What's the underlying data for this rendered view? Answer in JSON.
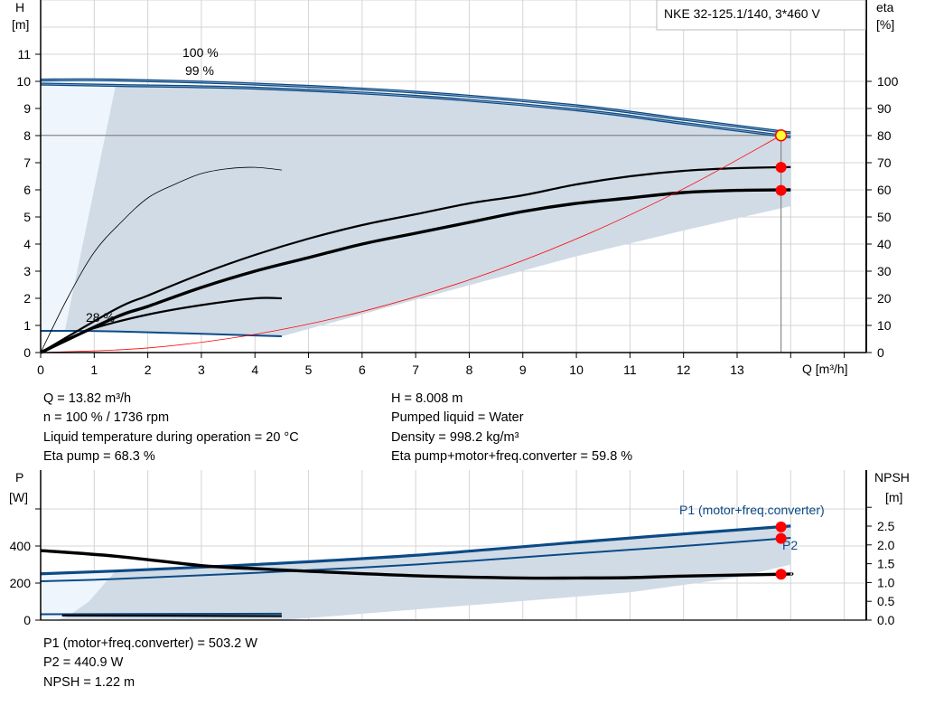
{
  "title_box": "NKE 32-125.1/140, 3*460 V",
  "colors": {
    "curve_blue": "#0b4a86",
    "area_dark": "#d0dbe6",
    "area_light": "#eef5fc",
    "system_red": "#ff0000",
    "point_red": "#ff0000",
    "point_yellow": "#ffff33",
    "grid": "#d4d4d4"
  },
  "info_top": {
    "left": [
      "Q = 13.82 m³/h",
      "n = 100 % / 1736 rpm",
      "Liquid temperature during operation = 20 °C",
      "Eta pump = 68.3 %"
    ],
    "right": [
      "H = 8.008 m",
      "Pumped liquid = Water",
      "Density = 998.2 kg/m³",
      "Eta pump+motor+freq.converter = 59.8 %"
    ]
  },
  "info_bottom": [
    "P1 (motor+freq.converter) = 503.2 W",
    "P2 = 440.9 W",
    "NPSH = 1.22 m"
  ],
  "chart_data": [
    {
      "type": "line",
      "title": "NKE 32-125.1/140, 3*460 V",
      "xlabel": "Q [m³/h]",
      "ylabel": [
        "H",
        "[m]"
      ],
      "y2label": [
        "eta",
        "[%]"
      ],
      "xlim": [
        0,
        15.4
      ],
      "ylim": [
        0,
        13
      ],
      "y2lim": [
        0,
        130
      ],
      "x_ticks": [
        "0",
        "1",
        "2",
        "3",
        "4",
        "5",
        "6",
        "7",
        "8",
        "9",
        "10",
        "11",
        "12",
        "13"
      ],
      "y_ticks": [
        "0",
        "1",
        "2",
        "3",
        "4",
        "5",
        "6",
        "7",
        "8",
        "9",
        "10",
        "11"
      ],
      "y2_ticks": [
        "0",
        "10",
        "20",
        "30",
        "40",
        "50",
        "60",
        "70",
        "80",
        "90",
        "100"
      ],
      "grid": true,
      "annotations": [
        {
          "text": "100 %",
          "x": 3.0,
          "y": 10.3
        },
        {
          "text": "99 %",
          "x": 3.0,
          "y": 10.1
        },
        {
          "text": "28 %",
          "x": 1.15,
          "y": 1.15
        }
      ],
      "areas": [
        {
          "fill": "light",
          "points": [
            [
              0,
              10.05
            ],
            [
              1.4,
              10.05
            ],
            [
              1.4,
              9.85
            ],
            [
              0.45,
              0.8
            ],
            [
              0,
              0.8
            ]
          ]
        },
        {
          "fill": "dark",
          "points": [
            [
              1.4,
              9.85
            ],
            [
              4,
              9.75
            ],
            [
              7,
              9.45
            ],
            [
              10,
              8.95
            ],
            [
              12,
              8.45
            ],
            [
              14,
              7.95
            ],
            [
              14,
              5.4
            ],
            [
              12,
              4.5
            ],
            [
              10,
              3.55
            ],
            [
              7,
              1.95
            ],
            [
              4.5,
              0.6
            ],
            [
              1.4,
              0.78
            ],
            [
              0.45,
              0.8
            ]
          ]
        }
      ],
      "series": [
        {
          "axis": "H",
          "style": "blue-thick",
          "points": [
            [
              0,
              10.05
            ],
            [
              1.4,
              10.05
            ],
            [
              4,
              9.9
            ],
            [
              7,
              9.6
            ],
            [
              10,
              9.1
            ],
            [
              12,
              8.6
            ],
            [
              14,
              8.1
            ]
          ]
        },
        {
          "axis": "H",
          "style": "blue-thick",
          "points": [
            [
              0,
              9.9
            ],
            [
              1.4,
              9.85
            ],
            [
              4,
              9.75
            ],
            [
              7,
              9.45
            ],
            [
              10,
              8.95
            ],
            [
              12,
              8.45
            ],
            [
              14,
              7.95
            ]
          ]
        },
        {
          "axis": "H",
          "style": "blue",
          "points": [
            [
              0,
              0.8
            ],
            [
              1.4,
              0.78
            ],
            [
              4.5,
              0.6
            ]
          ]
        },
        {
          "axis": "eta",
          "style": "black",
          "points": [
            [
              0,
              0
            ],
            [
              1.4,
              16
            ],
            [
              2,
              21
            ],
            [
              3,
              29
            ],
            [
              4,
              36
            ],
            [
              5,
              42
            ],
            [
              6,
              47
            ],
            [
              7,
              51
            ],
            [
              8,
              55
            ],
            [
              9,
              58
            ],
            [
              10,
              62
            ],
            [
              11,
              65
            ],
            [
              12,
              67
            ],
            [
              13,
              68
            ],
            [
              14,
              68.4
            ]
          ]
        },
        {
          "axis": "eta",
          "style": "black-thick",
          "points": [
            [
              0,
              0
            ],
            [
              1.4,
              13
            ],
            [
              2,
              17
            ],
            [
              3,
              24
            ],
            [
              4,
              30
            ],
            [
              5,
              35
            ],
            [
              6,
              40
            ],
            [
              7,
              44
            ],
            [
              8,
              48
            ],
            [
              9,
              52
            ],
            [
              10,
              55
            ],
            [
              11,
              57
            ],
            [
              12,
              59
            ],
            [
              13,
              59.8
            ],
            [
              14,
              60
            ]
          ]
        },
        {
          "axis": "eta",
          "style": "black-thin",
          "points": [
            [
              0,
              0
            ],
            [
              0.5,
              20
            ],
            [
              1,
              37
            ],
            [
              1.5,
              48
            ],
            [
              2,
              57
            ],
            [
              2.5,
              62
            ],
            [
              3,
              66
            ],
            [
              3.5,
              67.8
            ],
            [
              4,
              68.3
            ],
            [
              4.5,
              67.3
            ]
          ]
        },
        {
          "axis": "eta",
          "style": "black",
          "points": [
            [
              0,
              0
            ],
            [
              0.5,
              5
            ],
            [
              1,
              9
            ],
            [
              2,
              14
            ],
            [
              3,
              17.5
            ],
            [
              4,
              20
            ],
            [
              4.5,
              20
            ]
          ]
        },
        {
          "axis": "H",
          "style": "red-thin",
          "points": [
            [
              0,
              0
            ],
            [
              2,
              0.168
            ],
            [
              4,
              0.671
            ],
            [
              6,
              1.51
            ],
            [
              8,
              2.68
            ],
            [
              10,
              4.19
            ],
            [
              12,
              6.04
            ],
            [
              13.82,
              8.008
            ]
          ]
        }
      ],
      "duty_point": {
        "Q": 13.82,
        "H": 8.008,
        "eta_pump": 68.3,
        "eta_total": 59.8
      }
    },
    {
      "type": "line",
      "ylabel": [
        "P",
        "[W]"
      ],
      "y2label": [
        "NPSH",
        "[m]"
      ],
      "xlim": [
        0,
        15.4
      ],
      "ylim": [
        0,
        800
      ],
      "y2lim": [
        0,
        3.9
      ],
      "y_ticks": [
        "0",
        "200",
        "400"
      ],
      "y2_ticks": [
        "0.0",
        "0.5",
        "1.0",
        "1.5",
        "2.0",
        "2.5"
      ],
      "grid": true,
      "labels": [
        {
          "text": "P1 (motor+freq.converter)",
          "x": 11.9,
          "y": 550
        },
        {
          "text": "P2",
          "x": 13.85,
          "y": 400
        }
      ],
      "areas": [
        {
          "fill": "light",
          "points": [
            [
              0,
              250
            ],
            [
              1.4,
              265
            ],
            [
              1.2,
              200
            ],
            [
              0.9,
              100
            ],
            [
              0.5,
              20
            ],
            [
              0.3,
              0
            ],
            [
              0,
              0
            ]
          ]
        },
        {
          "fill": "dark",
          "points": [
            [
              1.4,
              265
            ],
            [
              4,
              300
            ],
            [
              7,
              350
            ],
            [
              10,
              420
            ],
            [
              12,
              465
            ],
            [
              14,
              508
            ],
            [
              14,
              300
            ],
            [
              13,
              230
            ],
            [
              11,
              150
            ],
            [
              8,
              80
            ],
            [
              4.5,
              0
            ],
            [
              0.3,
              0
            ],
            [
              0.5,
              20
            ],
            [
              0.9,
              100
            ],
            [
              1.2,
              200
            ]
          ]
        }
      ],
      "series": [
        {
          "axis": "P",
          "style": "blue-thick",
          "points": [
            [
              0,
              250
            ],
            [
              1.4,
              265
            ],
            [
              4,
              300
            ],
            [
              7,
              350
            ],
            [
              10,
              420
            ],
            [
              12,
              465
            ],
            [
              14,
              508
            ]
          ]
        },
        {
          "axis": "P",
          "style": "blue",
          "points": [
            [
              0,
              210
            ],
            [
              1.4,
              222
            ],
            [
              4,
              255
            ],
            [
              7,
              300
            ],
            [
              10,
              360
            ],
            [
              12,
              400
            ],
            [
              14,
              444
            ]
          ]
        },
        {
          "axis": "NPSH",
          "style": "black-thick",
          "points": [
            [
              0,
              1.85
            ],
            [
              1.4,
              1.7
            ],
            [
              3,
              1.45
            ],
            [
              4,
              1.37
            ],
            [
              5,
              1.3
            ],
            [
              7,
              1.18
            ],
            [
              9,
              1.12
            ],
            [
              10,
              1.12
            ],
            [
              11,
              1.13
            ],
            [
              12,
              1.17
            ],
            [
              13.82,
              1.22
            ],
            [
              14,
              1.23
            ]
          ]
        },
        {
          "axis": "P",
          "style": "blue",
          "points": [
            [
              0,
              32
            ],
            [
              4.5,
              35
            ]
          ]
        },
        {
          "axis": "P",
          "style": "black",
          "points": [
            [
              0.4,
              25
            ],
            [
              4.5,
              22
            ]
          ]
        }
      ],
      "duty_point": {
        "Q": 13.82,
        "P1": 503.2,
        "P2": 440.9,
        "NPSH": 1.22
      }
    }
  ]
}
